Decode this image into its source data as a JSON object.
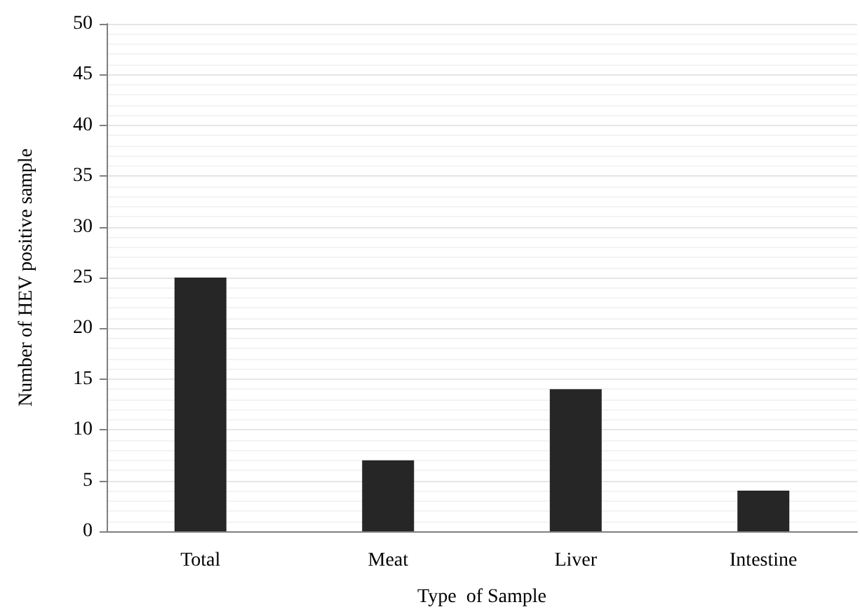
{
  "chart_data": {
    "type": "bar",
    "xlabel": "Type  of Sample",
    "ylabel": "Number of HEV positive sample",
    "categories": [
      "Total",
      "Meat",
      "Liver",
      "Intestine"
    ],
    "values": [
      25,
      7,
      14,
      4
    ],
    "color": "#262626",
    "ylim": [
      0,
      50
    ],
    "yticks": [
      0,
      5,
      10,
      15,
      20,
      25,
      30,
      35,
      40,
      45,
      50
    ],
    "grid": "y"
  }
}
